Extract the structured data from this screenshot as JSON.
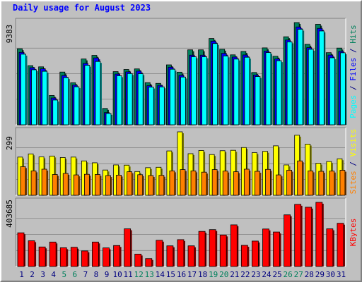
{
  "chart_data": {
    "type": "bar",
    "title": "Daily usage for August 2023",
    "categories": [
      "1",
      "2",
      "3",
      "4",
      "5",
      "6",
      "7",
      "8",
      "9",
      "10",
      "11",
      "12",
      "13",
      "14",
      "15",
      "16",
      "17",
      "18",
      "19",
      "20",
      "21",
      "22",
      "23",
      "24",
      "25",
      "26",
      "27",
      "28",
      "29",
      "30",
      "31"
    ],
    "weekend_days": [
      "5",
      "6",
      "12",
      "13",
      "19",
      "20",
      "26",
      "27"
    ],
    "panels": [
      {
        "id": "hits_files_pages",
        "max_label": "9383",
        "ylim": [
          0,
          9383
        ],
        "series": [
          {
            "name": "Hits",
            "color": "#00805c",
            "values": [
              6980,
              5430,
              5320,
              2690,
              4840,
              3860,
              6040,
              6370,
              1500,
              4880,
              5080,
              5130,
              3870,
              3800,
              5500,
              4830,
              6880,
              6880,
              7920,
              6930,
              6420,
              6730,
              4800,
              7060,
              6290,
              8080,
              9383,
              7390,
              9223,
              6620,
              7040
            ]
          },
          {
            "name": "Files",
            "color": "#0000ff",
            "values": [
              6650,
              5240,
              5140,
              2460,
              4520,
              3640,
              5630,
              6140,
              1120,
              4660,
              4860,
              4930,
              3590,
              3620,
              5290,
              4540,
              6390,
              6390,
              7680,
              6560,
              6220,
              6410,
              4570,
              6760,
              6040,
              7780,
              8980,
              7080,
              8850,
              6400,
              6740
            ]
          },
          {
            "name": "Pages",
            "color": "#00ffff",
            "values": [
              6480,
              5050,
              4910,
              2270,
              4330,
              3490,
              5460,
              5810,
              1040,
              4500,
              4700,
              4690,
              3460,
              3480,
              5100,
              4380,
              6240,
              6240,
              7460,
              6320,
              6030,
              6200,
              4430,
              6630,
              5880,
              7610,
              8770,
              6930,
              8610,
              6150,
              6610
            ]
          }
        ]
      },
      {
        "id": "sites_visits",
        "max_label": "299",
        "ylim": [
          0,
          299
        ],
        "series": [
          {
            "name": "Visits",
            "color": "#ffff00",
            "values": [
              180,
              195,
              181,
              185,
              178,
              180,
              162,
              153,
              119,
              143,
              142,
              112,
              130,
              132,
              209,
              299,
              196,
              211,
              192,
              210,
              212,
              225,
              201,
              207,
              233,
              143,
              283,
              241,
              151,
              159,
              172
            ]
          },
          {
            "name": "Sites",
            "color": "#ff8000",
            "values": [
              135,
              115,
              123,
              98,
              103,
              96,
              99,
              98,
              93,
              95,
              111,
              97,
              93,
              94,
              115,
              121,
              115,
              109,
              121,
              114,
              111,
              123,
              113,
              122,
              96,
              118,
              162,
              115,
              113,
              114,
              118
            ]
          }
        ]
      },
      {
        "id": "kbytes",
        "max_label": "403685",
        "ylim": [
          0,
          403685
        ],
        "series": [
          {
            "name": "KBytes",
            "color": "#ff0000",
            "values": [
              212000,
              162000,
              123000,
              154000,
              118000,
              121000,
              98000,
              154000,
              117000,
              132000,
              237000,
              78000,
              50000,
              165000,
              130000,
              169000,
              130000,
              221000,
              232000,
              198000,
              262000,
              133000,
              160000,
              236000,
              217000,
              325000,
              391000,
              373000,
              403685,
              237000,
              272000
            ]
          }
        ]
      }
    ],
    "right_labels": [
      {
        "parts": [
          {
            "text": "Pages",
            "color": "#00ffff"
          },
          {
            "text": " / ",
            "color": "#000080"
          },
          {
            "text": "Files",
            "color": "#0000ff"
          },
          {
            "text": " / ",
            "color": "#000080"
          },
          {
            "text": "Hits",
            "color": "#00805c"
          }
        ]
      },
      {
        "parts": [
          {
            "text": "Sites",
            "color": "#ff8000"
          },
          {
            "text": " / ",
            "color": "#000080"
          },
          {
            "text": "Visits",
            "color": "#ffff00"
          }
        ]
      },
      {
        "parts": [
          {
            "text": "KBytes",
            "color": "#ff0000"
          }
        ]
      }
    ],
    "colors": {
      "background": "#c0c0c0",
      "plot_background": "#c0c0c0",
      "gridline": "#808080",
      "title": "#0000ff",
      "weekday_label": "#000080",
      "weekend_label": "#00805c"
    },
    "grid": true
  }
}
